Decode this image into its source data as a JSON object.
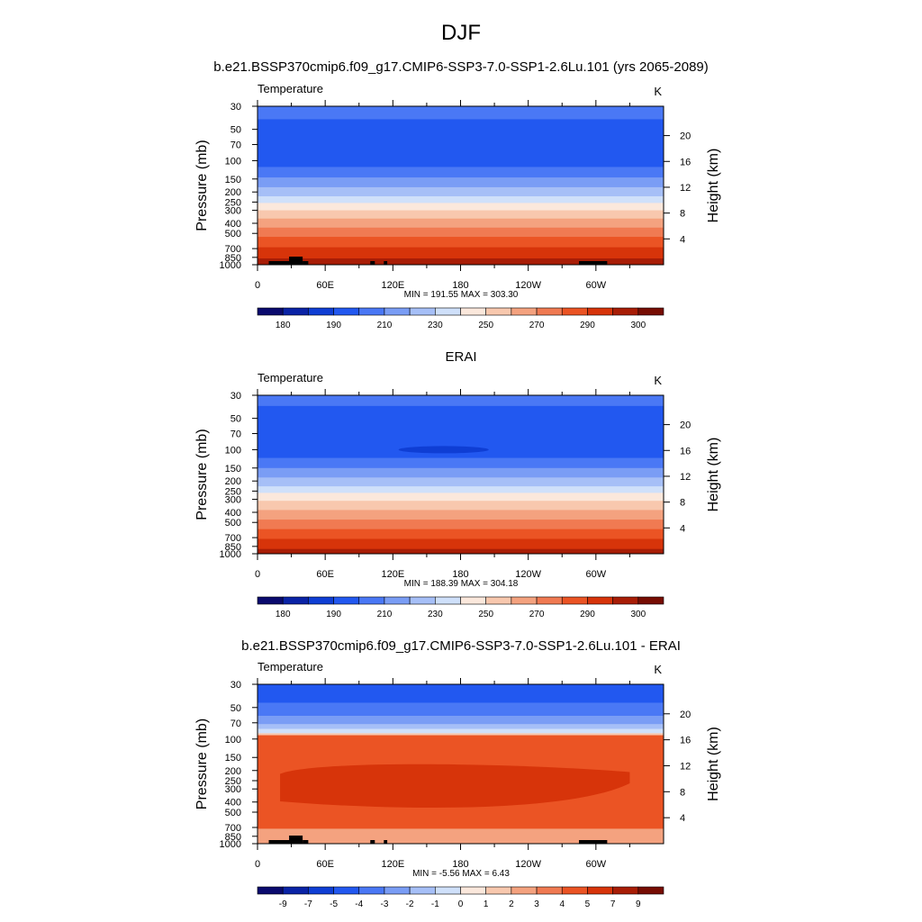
{
  "figure": {
    "title": "DJF",
    "subtitles": [
      "b.e21.BSSP370cmip6.f09_g17.CMIP6-SSP3-7.0-SSP1-2.6Lu.101 (yrs 2065-2089)",
      "ERAI",
      "b.e21.BSSP370cmip6.f09_g17.CMIP6-SSP3-7.0-SSP1-2.6Lu.101 - ERAI"
    ]
  },
  "colors": {
    "palette": [
      "#0a0a6e",
      "#0a23a6",
      "#0f3ed4",
      "#2258f0",
      "#4a78f5",
      "#7a9df5",
      "#a6bff7",
      "#cfe0fa",
      "#fbe8dc",
      "#f8c8ae",
      "#f4a27f",
      "#f07a52",
      "#eb5424",
      "#d7340a",
      "#a81d06",
      "#770d03"
    ],
    "terrain": "#000000"
  },
  "chart_data": [
    {
      "type": "heatmap",
      "panel": "model",
      "left_label": "Temperature",
      "units_label": "K",
      "ylabel": "Pressure (mb)",
      "y2label": "Height (km)",
      "x_ticks": [
        "0",
        "60E",
        "120E",
        "180",
        "120W",
        "60W"
      ],
      "x_tick_lon": [
        0,
        60,
        120,
        180,
        240,
        300
      ],
      "xlim": [
        0,
        360
      ],
      "p_ticks": [
        30,
        50,
        70,
        100,
        150,
        200,
        250,
        300,
        400,
        500,
        700,
        850,
        1000
      ],
      "p_tick_labels": [
        "30",
        "50",
        "70",
        "100",
        "150",
        "200",
        "250",
        "300",
        "400",
        "500",
        "700",
        "850",
        "1000"
      ],
      "ylim_mb": [
        1000,
        30
      ],
      "height_ticks_km": [
        4,
        8,
        12,
        16,
        20
      ],
      "height_tick_labels": [
        "4",
        "8",
        "12",
        "16",
        "20"
      ],
      "stats": "MIN = 191.55  MAX = 303.30",
      "colorbar_labels": [
        "180",
        "190",
        "210",
        "230",
        "250",
        "270",
        "290",
        "300"
      ],
      "level_bands_mb": [
        [
          30,
          40,
          4
        ],
        [
          40,
          80,
          3
        ],
        [
          80,
          115,
          3
        ],
        [
          115,
          145,
          4
        ],
        [
          145,
          180,
          5
        ],
        [
          180,
          220,
          6
        ],
        [
          220,
          255,
          7
        ],
        [
          255,
          300,
          8
        ],
        [
          300,
          360,
          9
        ],
        [
          360,
          440,
          10
        ],
        [
          440,
          540,
          11
        ],
        [
          540,
          680,
          12
        ],
        [
          680,
          870,
          13
        ],
        [
          870,
          1000,
          14
        ]
      ],
      "terrain_lon": [
        [
          10,
          30
        ],
        [
          28,
          40
        ],
        [
          40,
          45
        ],
        [
          100,
          104
        ],
        [
          112,
          115
        ],
        [
          285,
          310
        ]
      ]
    },
    {
      "type": "heatmap",
      "panel": "obs",
      "left_label": "Temperature",
      "units_label": "K",
      "ylabel": "Pressure (mb)",
      "y2label": "Height (km)",
      "x_ticks": [
        "0",
        "60E",
        "120E",
        "180",
        "120W",
        "60W"
      ],
      "x_tick_lon": [
        0,
        60,
        120,
        180,
        240,
        300
      ],
      "xlim": [
        0,
        360
      ],
      "p_ticks": [
        30,
        50,
        70,
        100,
        150,
        200,
        250,
        300,
        400,
        500,
        700,
        850,
        1000
      ],
      "p_tick_labels": [
        "30",
        "50",
        "70",
        "100",
        "150",
        "200",
        "250",
        "300",
        "400",
        "500",
        "700",
        "850",
        "1000"
      ],
      "ylim_mb": [
        1000,
        30
      ],
      "height_ticks_km": [
        4,
        8,
        12,
        16,
        20
      ],
      "height_tick_labels": [
        "4",
        "8",
        "12",
        "16",
        "20"
      ],
      "stats": "MIN = 188.39  MAX = 304.18",
      "colorbar_labels": [
        "180",
        "190",
        "210",
        "230",
        "250",
        "270",
        "290",
        "300"
      ],
      "level_bands_mb": [
        [
          30,
          38,
          4
        ],
        [
          38,
          72,
          3
        ],
        [
          72,
          120,
          3
        ],
        [
          120,
          150,
          4
        ],
        [
          150,
          185,
          5
        ],
        [
          185,
          225,
          6
        ],
        [
          225,
          260,
          7
        ],
        [
          260,
          310,
          8
        ],
        [
          310,
          380,
          9
        ],
        [
          380,
          470,
          10
        ],
        [
          470,
          580,
          11
        ],
        [
          580,
          720,
          12
        ],
        [
          720,
          900,
          13
        ],
        [
          900,
          1000,
          14
        ]
      ],
      "blob": {
        "lon_center": 165,
        "p_center": 100,
        "lon_halfwidth": 40,
        "level": 2
      }
    },
    {
      "type": "heatmap",
      "panel": "difference",
      "left_label": "Temperature",
      "units_label": "K",
      "ylabel": "Pressure (mb)",
      "y2label": "Height (km)",
      "x_ticks": [
        "0",
        "60E",
        "120E",
        "180",
        "120W",
        "60W"
      ],
      "x_tick_lon": [
        0,
        60,
        120,
        180,
        240,
        300
      ],
      "xlim": [
        0,
        360
      ],
      "p_ticks": [
        30,
        50,
        70,
        100,
        150,
        200,
        250,
        300,
        400,
        500,
        700,
        850,
        1000
      ],
      "p_tick_labels": [
        "30",
        "50",
        "70",
        "100",
        "150",
        "200",
        "250",
        "300",
        "400",
        "500",
        "700",
        "850",
        "1000"
      ],
      "ylim_mb": [
        1000,
        30
      ],
      "height_ticks_km": [
        4,
        8,
        12,
        16,
        20
      ],
      "height_tick_labels": [
        "4",
        "8",
        "12",
        "16",
        "20"
      ],
      "stats": "MIN =  -5.56  MAX =   6.43",
      "colorbar_labels": [
        "-9",
        "-7",
        "-5",
        "-4",
        "-3",
        "-2",
        "-1",
        "0",
        "1",
        "2",
        "3",
        "4",
        "5",
        "7",
        "9"
      ],
      "level_bands_mb": [
        [
          30,
          45,
          3
        ],
        [
          45,
          60,
          4
        ],
        [
          60,
          72,
          5
        ],
        [
          72,
          80,
          6
        ],
        [
          80,
          88,
          7
        ],
        [
          88,
          92,
          9
        ],
        [
          92,
          1000,
          12
        ]
      ],
      "core": {
        "p_top": 170,
        "p_bottom": 480,
        "lon_min": 20,
        "lon_max": 330,
        "level": 13
      },
      "near_surface": {
        "p_top": 720,
        "p_bottom": 1000,
        "level": 10
      },
      "terrain_lon": [
        [
          10,
          30
        ],
        [
          28,
          40
        ],
        [
          40,
          45
        ],
        [
          100,
          104
        ],
        [
          112,
          115
        ],
        [
          285,
          310
        ]
      ]
    }
  ]
}
